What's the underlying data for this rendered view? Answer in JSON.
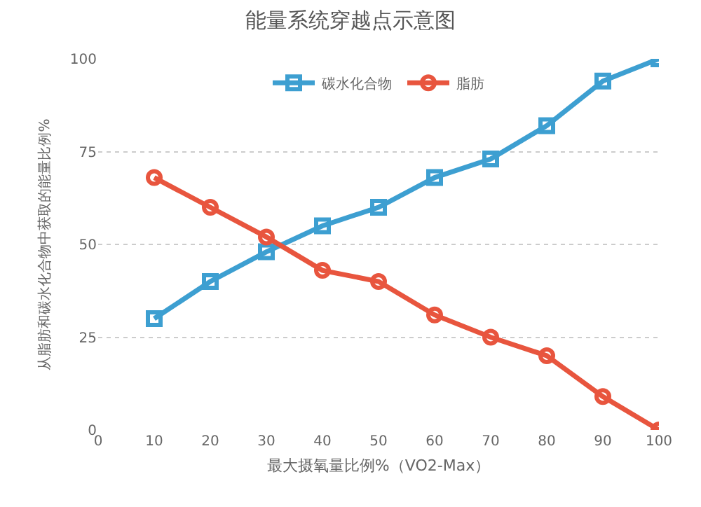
{
  "chart_data": {
    "type": "line",
    "title": "能量系统穿越点示意图",
    "xlabel": "最大摄氧量比例%（VO2-Max）",
    "ylabel": "从脂肪和碳水化合物中获取的能量比例%",
    "x": [
      10,
      20,
      30,
      40,
      50,
      60,
      70,
      80,
      90,
      100
    ],
    "series": [
      {
        "name": "碳水化合物",
        "color": "#3d9fd1",
        "marker": "square",
        "values": [
          30,
          40,
          48,
          55,
          60,
          68,
          73,
          82,
          94,
          100
        ]
      },
      {
        "name": "脂肪",
        "color": "#e8553e",
        "marker": "circle",
        "values": [
          68,
          60,
          52,
          43,
          40,
          31,
          25,
          20,
          9,
          0
        ]
      }
    ],
    "xlim": [
      0,
      100
    ],
    "xticks": [
      0,
      10,
      20,
      30,
      40,
      50,
      60,
      70,
      80,
      90,
      100
    ],
    "ylim": [
      0,
      100
    ],
    "yticks": [
      0,
      25,
      50,
      75,
      100
    ],
    "grid": "y",
    "legend": "top",
    "line_style": "solid"
  }
}
